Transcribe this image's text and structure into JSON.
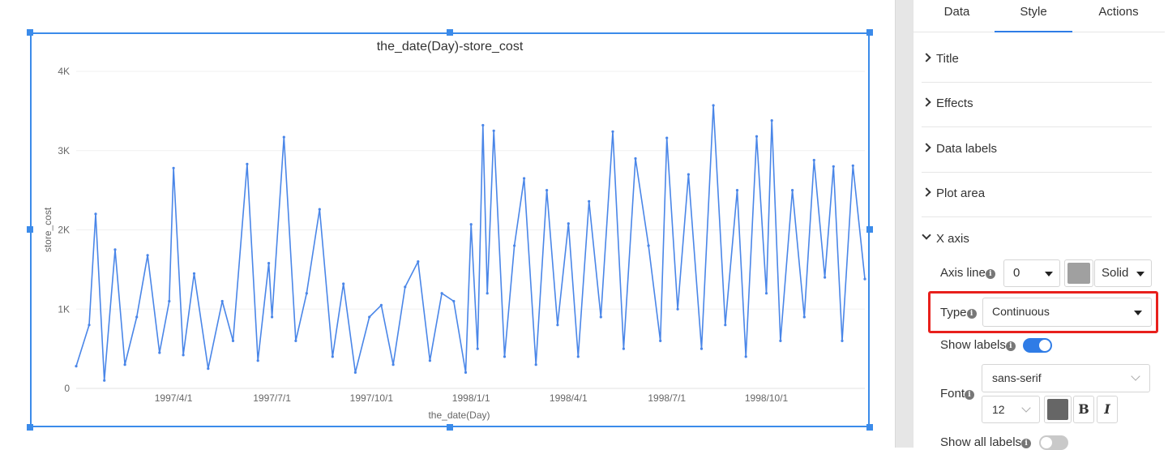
{
  "chart_data": {
    "type": "line",
    "title": "the_date(Day)-store_cost",
    "xlabel": "the_date(Day)",
    "ylabel": "store_cost",
    "x_tick_labels": [
      "1997/4/1",
      "1997/7/1",
      "1997/10/1",
      "1998/1/1",
      "1998/4/1",
      "1998/7/1",
      "1998/10/1"
    ],
    "y_tick_labels": [
      "0",
      "1K",
      "2K",
      "3K",
      "4K"
    ],
    "ylim": [
      0,
      4000
    ],
    "xlim": [
      "1997/1/1",
      "1998/12/31"
    ],
    "grid": "horizontal",
    "series": [
      {
        "color": "#4a86e8",
        "x": [
          "1997/1/1",
          "1997/1/13",
          "1997/1/19",
          "1997/1/27",
          "1997/2/6",
          "1997/2/15",
          "1997/2/26",
          "1997/3/8",
          "1997/3/19",
          "1997/3/28",
          "1997/4/1",
          "1997/4/10",
          "1997/4/20",
          "1997/5/3",
          "1997/5/16",
          "1997/5/26",
          "1997/6/8",
          "1997/6/18",
          "1997/6/28",
          "1997/7/1",
          "1997/7/12",
          "1997/7/23",
          "1997/8/2",
          "1997/8/14",
          "1997/8/26",
          "1997/9/5",
          "1997/9/16",
          "1997/9/29",
          "1997/10/10",
          "1997/10/21",
          "1997/11/1",
          "1997/11/13",
          "1997/11/24",
          "1997/12/5",
          "1997/12/16",
          "1997/12/27",
          "1998/1/1",
          "1998/1/7",
          "1998/1/12",
          "1998/1/16",
          "1998/1/22",
          "1998/2/1",
          "1998/2/10",
          "1998/2/19",
          "1998/3/2",
          "1998/3/12",
          "1998/3/22",
          "1998/4/1",
          "1998/4/10",
          "1998/4/20",
          "1998/5/1",
          "1998/5/12",
          "1998/5/22",
          "1998/6/2",
          "1998/6/14",
          "1998/6/25",
          "1998/7/1",
          "1998/7/11",
          "1998/7/21",
          "1998/8/2",
          "1998/8/13",
          "1998/8/24",
          "1998/9/4",
          "1998/9/12",
          "1998/9/22",
          "1998/10/1",
          "1998/10/6",
          "1998/10/14",
          "1998/10/25",
          "1998/11/5",
          "1998/11/14",
          "1998/11/24",
          "1998/12/2",
          "1998/12/10",
          "1998/12/20",
          "1998/12/31"
        ],
        "y": [
          280,
          800,
          2200,
          100,
          1750,
          300,
          900,
          1680,
          450,
          1100,
          2780,
          420,
          1450,
          250,
          1100,
          600,
          2830,
          350,
          1580,
          900,
          3170,
          600,
          1200,
          2260,
          400,
          1320,
          200,
          900,
          1050,
          300,
          1280,
          1600,
          350,
          1200,
          1100,
          200,
          2070,
          500,
          3320,
          1200,
          3250,
          400,
          1800,
          2650,
          300,
          2500,
          800,
          2080,
          400,
          2360,
          900,
          3240,
          500,
          2900,
          1800,
          600,
          3160,
          1000,
          2700,
          500,
          3570,
          800,
          2500,
          400,
          3180,
          1200,
          3380,
          600,
          2500,
          900,
          2880,
          1400,
          2800,
          600,
          2810,
          1380
        ]
      }
    ]
  },
  "panel": {
    "tabs": [
      {
        "label": "Data"
      },
      {
        "label": "Style"
      },
      {
        "label": "Actions"
      }
    ],
    "sections": [
      {
        "label": "Title"
      },
      {
        "label": "Effects"
      },
      {
        "label": "Data labels"
      },
      {
        "label": "Plot area"
      },
      {
        "label": "X axis"
      }
    ],
    "axis_line_label": "Axis line",
    "axis_line_width": "0",
    "axis_line_color": "#a0a0a0",
    "axis_line_style": "Solid",
    "type_label": "Type",
    "type_value": "Continuous",
    "show_labels_label": "Show labels",
    "show_labels_on": true,
    "font_label": "Font",
    "font_family": "sans-serif",
    "font_size": "12",
    "font_color": "#666666",
    "bold_label": "B",
    "italic_label": "I",
    "show_all_labels_label": "Show all labels",
    "show_all_labels_on": false
  }
}
